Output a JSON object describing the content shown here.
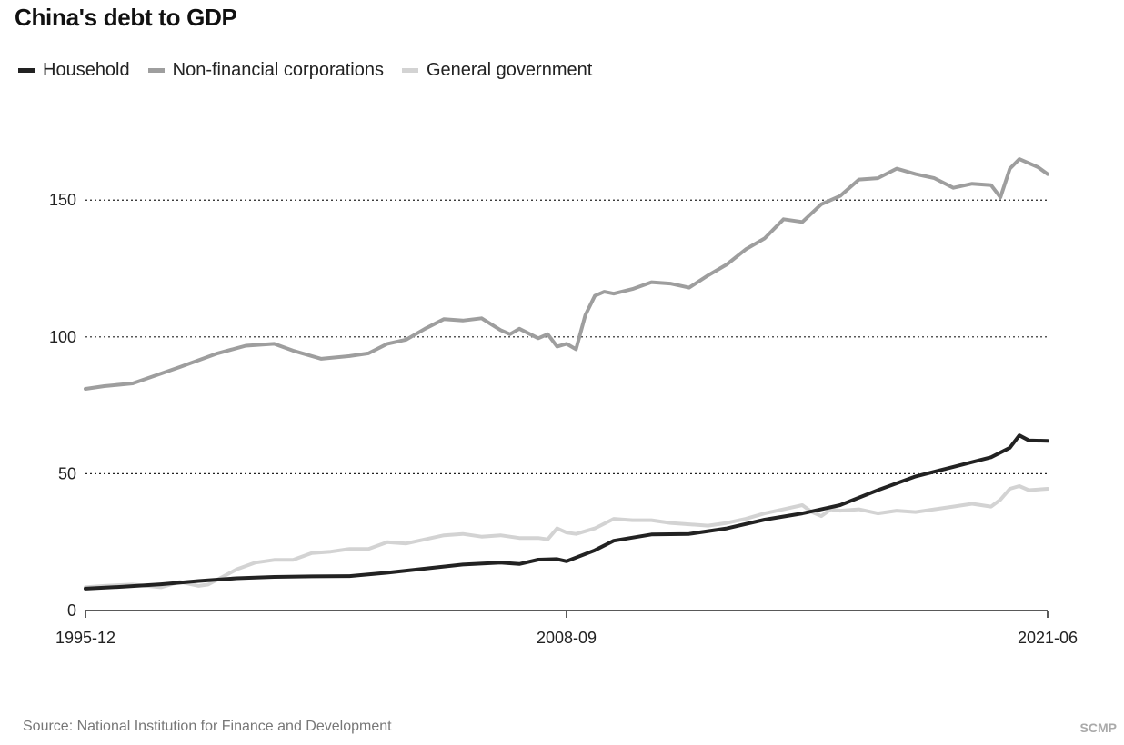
{
  "title": "China's debt to GDP",
  "source": "Source: National Institution for Finance and Development",
  "brand": "SCMP",
  "colors": {
    "household": "#222222",
    "corporations": "#9e9e9e",
    "government": "#d3d3d3",
    "grid": "#222222"
  },
  "chart_data": {
    "type": "line",
    "title": "China's debt to GDP",
    "xlabel": "",
    "ylabel": "",
    "ylim": [
      0,
      170
    ],
    "y_ticks": [
      0,
      50,
      100,
      150
    ],
    "x_tick_labels": [
      "1995-12",
      "2008-09",
      "2021-06"
    ],
    "x_range": [
      "1995-12",
      "2021-06"
    ],
    "grid": "horizontal dotted",
    "legend_position": "top-left",
    "series": [
      {
        "name": "Household",
        "key": "household",
        "points": [
          [
            "1995-12",
            8.0
          ],
          [
            "1996-12",
            8.7
          ],
          [
            "1997-12",
            9.6
          ],
          [
            "1998-12",
            10.8
          ],
          [
            "1999-12",
            11.8
          ],
          [
            "2000-12",
            12.3
          ],
          [
            "2001-12",
            12.5
          ],
          [
            "2002-12",
            12.6
          ],
          [
            "2003-12",
            13.8
          ],
          [
            "2004-12",
            15.3
          ],
          [
            "2005-12",
            16.8
          ],
          [
            "2006-12",
            17.5
          ],
          [
            "2007-06",
            17.0
          ],
          [
            "2007-12",
            18.6
          ],
          [
            "2008-06",
            18.8
          ],
          [
            "2008-09",
            18.0
          ],
          [
            "2009-06",
            22.0
          ],
          [
            "2009-12",
            25.5
          ],
          [
            "2010-12",
            27.8
          ],
          [
            "2011-12",
            28.0
          ],
          [
            "2012-12",
            30.0
          ],
          [
            "2013-12",
            33.2
          ],
          [
            "2014-12",
            35.5
          ],
          [
            "2015-12",
            38.5
          ],
          [
            "2016-12",
            44.0
          ],
          [
            "2017-12",
            49.0
          ],
          [
            "2018-12",
            52.5
          ],
          [
            "2019-12",
            56.0
          ],
          [
            "2020-06",
            59.5
          ],
          [
            "2020-09",
            64.0
          ],
          [
            "2020-12",
            62.2
          ],
          [
            "2021-06",
            62.0
          ]
        ]
      },
      {
        "name": "Non-financial corporations",
        "key": "corporations",
        "points": [
          [
            "1995-12",
            81.0
          ],
          [
            "1996-06",
            82.0
          ],
          [
            "1997-03",
            83.0
          ],
          [
            "1998-06",
            89.0
          ],
          [
            "1999-06",
            94.0
          ],
          [
            "2000-03",
            96.8
          ],
          [
            "2000-12",
            97.5
          ],
          [
            "2001-06",
            95.0
          ],
          [
            "2002-03",
            92.0
          ],
          [
            "2002-12",
            93.0
          ],
          [
            "2003-06",
            94.0
          ],
          [
            "2003-12",
            97.5
          ],
          [
            "2004-06",
            99.0
          ],
          [
            "2004-12",
            103.0
          ],
          [
            "2005-06",
            106.5
          ],
          [
            "2005-12",
            106.0
          ],
          [
            "2006-06",
            106.8
          ],
          [
            "2006-12",
            102.5
          ],
          [
            "2007-03",
            101.0
          ],
          [
            "2007-06",
            103.0
          ],
          [
            "2007-12",
            99.5
          ],
          [
            "2008-03",
            101.0
          ],
          [
            "2008-06",
            96.5
          ],
          [
            "2008-09",
            97.5
          ],
          [
            "2008-12",
            95.5
          ],
          [
            "2009-03",
            108.0
          ],
          [
            "2009-06",
            115.0
          ],
          [
            "2009-09",
            116.5
          ],
          [
            "2009-12",
            115.8
          ],
          [
            "2010-06",
            117.5
          ],
          [
            "2010-12",
            120.0
          ],
          [
            "2011-06",
            119.5
          ],
          [
            "2011-12",
            118.0
          ],
          [
            "2012-06",
            122.5
          ],
          [
            "2012-12",
            126.5
          ],
          [
            "2013-06",
            132.0
          ],
          [
            "2013-12",
            136.0
          ],
          [
            "2014-06",
            143.0
          ],
          [
            "2014-12",
            142.0
          ],
          [
            "2015-06",
            148.5
          ],
          [
            "2015-12",
            151.5
          ],
          [
            "2016-06",
            157.5
          ],
          [
            "2016-12",
            158.0
          ],
          [
            "2017-06",
            161.5
          ],
          [
            "2017-12",
            159.5
          ],
          [
            "2018-06",
            158.0
          ],
          [
            "2018-12",
            154.5
          ],
          [
            "2019-06",
            156.0
          ],
          [
            "2019-12",
            155.5
          ],
          [
            "2020-03",
            151.0
          ],
          [
            "2020-06",
            161.5
          ],
          [
            "2020-09",
            165.0
          ],
          [
            "2020-12",
            163.5
          ],
          [
            "2021-03",
            162.0
          ],
          [
            "2021-06",
            159.5
          ]
        ]
      },
      {
        "name": "General government",
        "key": "government",
        "points": [
          [
            "1995-12",
            8.5
          ],
          [
            "1996-06",
            9.0
          ],
          [
            "1997-03",
            9.5
          ],
          [
            "1997-12",
            8.5
          ],
          [
            "1998-06",
            10.5
          ],
          [
            "1998-12",
            9.0
          ],
          [
            "1999-03",
            9.5
          ],
          [
            "1999-12",
            15.0
          ],
          [
            "2000-06",
            17.5
          ],
          [
            "2000-12",
            18.5
          ],
          [
            "2001-06",
            18.5
          ],
          [
            "2001-12",
            21.0
          ],
          [
            "2002-06",
            21.5
          ],
          [
            "2002-12",
            22.5
          ],
          [
            "2003-06",
            22.5
          ],
          [
            "2003-12",
            25.0
          ],
          [
            "2004-06",
            24.5
          ],
          [
            "2004-12",
            26.0
          ],
          [
            "2005-06",
            27.5
          ],
          [
            "2005-12",
            28.0
          ],
          [
            "2006-06",
            27.0
          ],
          [
            "2006-12",
            27.5
          ],
          [
            "2007-06",
            26.5
          ],
          [
            "2007-12",
            26.5
          ],
          [
            "2008-03",
            26.0
          ],
          [
            "2008-06",
            30.0
          ],
          [
            "2008-09",
            28.5
          ],
          [
            "2008-12",
            28.0
          ],
          [
            "2009-06",
            30.0
          ],
          [
            "2009-12",
            33.5
          ],
          [
            "2010-06",
            33.0
          ],
          [
            "2010-12",
            33.0
          ],
          [
            "2011-06",
            32.0
          ],
          [
            "2011-12",
            31.5
          ],
          [
            "2012-06",
            31.0
          ],
          [
            "2012-12",
            32.0
          ],
          [
            "2013-06",
            33.5
          ],
          [
            "2013-12",
            35.5
          ],
          [
            "2014-06",
            37.0
          ],
          [
            "2014-12",
            38.5
          ],
          [
            "2015-03",
            36.0
          ],
          [
            "2015-06",
            34.5
          ],
          [
            "2015-09",
            37.0
          ],
          [
            "2015-12",
            36.5
          ],
          [
            "2016-06",
            37.0
          ],
          [
            "2016-12",
            35.5
          ],
          [
            "2017-06",
            36.5
          ],
          [
            "2017-12",
            36.0
          ],
          [
            "2018-06",
            37.0
          ],
          [
            "2018-12",
            38.0
          ],
          [
            "2019-06",
            39.0
          ],
          [
            "2019-12",
            38.0
          ],
          [
            "2020-03",
            40.5
          ],
          [
            "2020-06",
            44.5
          ],
          [
            "2020-09",
            45.5
          ],
          [
            "2020-12",
            44.0
          ],
          [
            "2021-06",
            44.5
          ]
        ]
      }
    ]
  }
}
